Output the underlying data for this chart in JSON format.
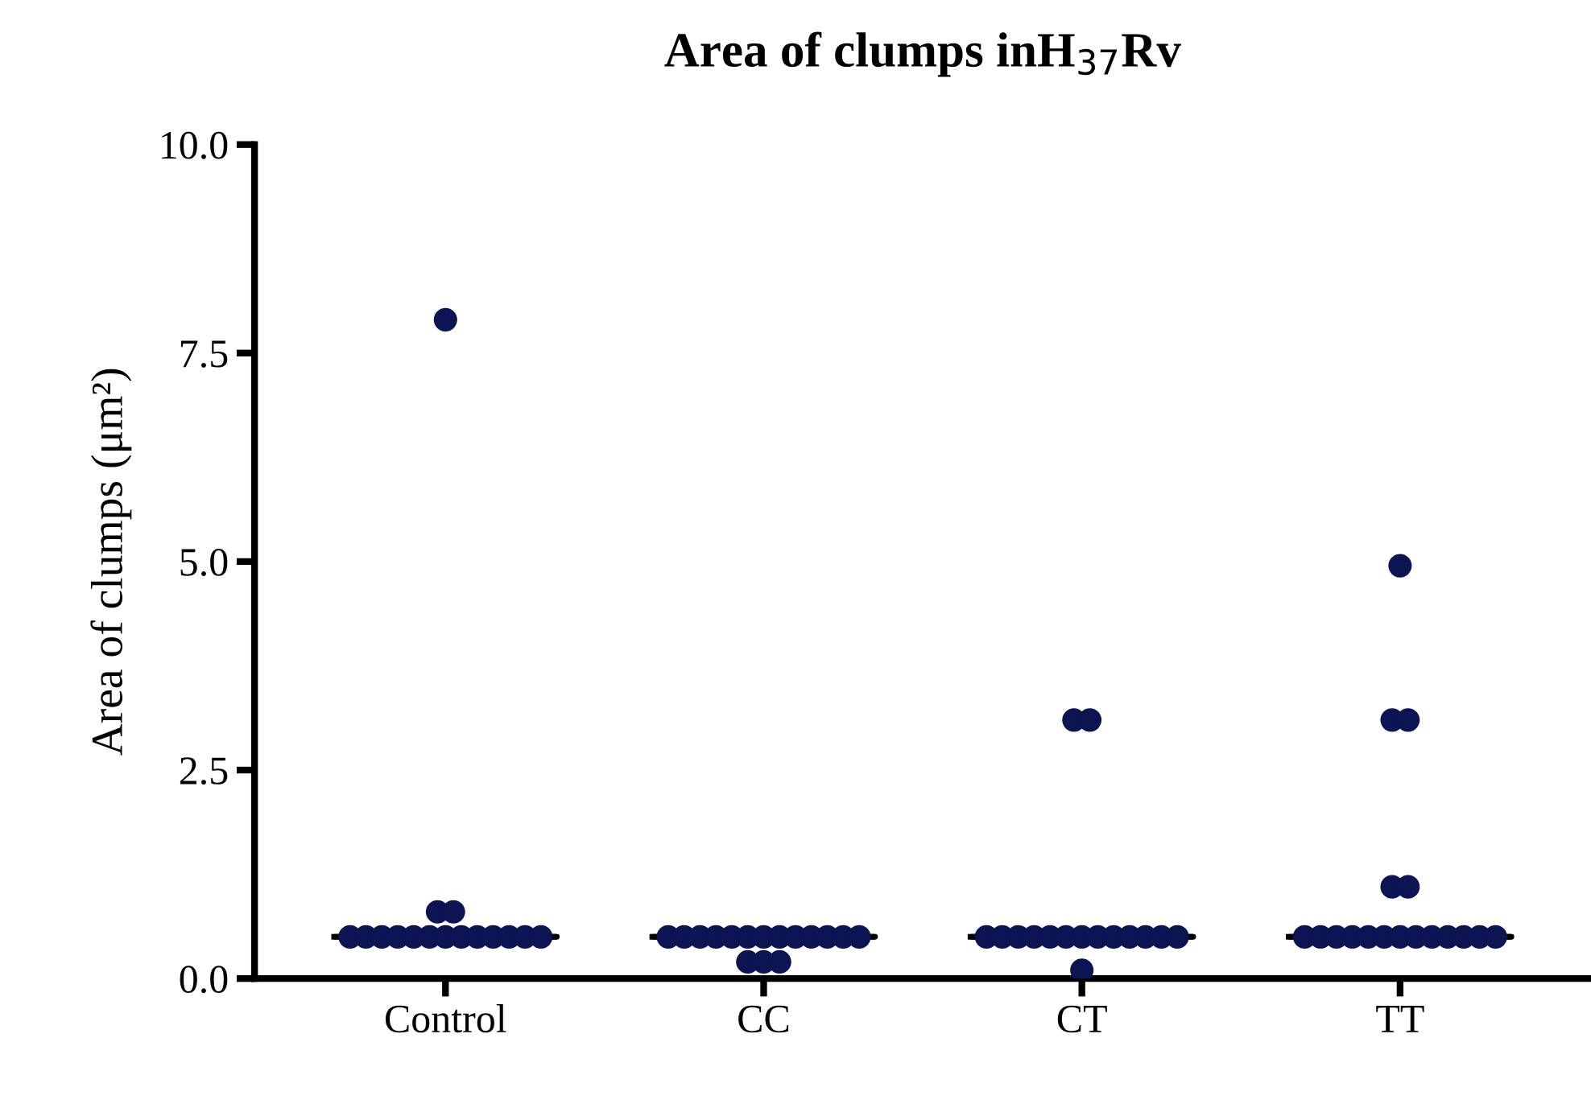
{
  "chart_data": {
    "type": "scatter",
    "title": "Area of clumps inH$_{37}$Rv",
    "ylabel": "Area of clumps (μm²)",
    "categories": [
      "Control",
      "CC",
      "CT",
      "TT"
    ],
    "ylim": [
      0,
      10
    ],
    "yticks": [
      {
        "value": 0,
        "label": "0.0"
      },
      {
        "value": 2.5,
        "label": "2.5"
      },
      {
        "value": 5,
        "label": "5.0"
      },
      {
        "value": 7.5,
        "label": "7.5"
      },
      {
        "value": 10,
        "label": "10.0"
      }
    ],
    "grid": false,
    "marker": "circle",
    "series": [
      {
        "color": "#0d1452",
        "x": [
          "Control",
          "Control",
          "Control",
          "Control",
          "Control",
          "Control",
          "Control",
          "Control",
          "Control",
          "Control",
          "Control",
          "Control",
          "Control",
          "Control",
          "Control",
          "Control",
          "CC",
          "CC",
          "CC",
          "CC",
          "CC",
          "CC",
          "CC",
          "CC",
          "CC",
          "CC",
          "CC",
          "CC",
          "CC",
          "CC",
          "CC",
          "CC",
          "CT",
          "CT",
          "CT",
          "CT",
          "CT",
          "CT",
          "CT",
          "CT",
          "CT",
          "CT",
          "CT",
          "CT",
          "CT",
          "CT",
          "CT",
          "CT",
          "TT",
          "TT",
          "TT",
          "TT",
          "TT",
          "TT",
          "TT",
          "TT",
          "TT",
          "TT",
          "TT",
          "TT",
          "TT",
          "TT",
          "TT",
          "TT",
          "TT",
          "TT"
        ],
        "values": [
          7.9,
          0.8,
          0.8,
          0.5,
          0.5,
          0.5,
          0.5,
          0.5,
          0.5,
          0.5,
          0.5,
          0.5,
          0.5,
          0.5,
          0.5,
          0.5,
          0.5,
          0.5,
          0.5,
          0.5,
          0.5,
          0.5,
          0.5,
          0.5,
          0.5,
          0.5,
          0.5,
          0.5,
          0.5,
          0.2,
          0.2,
          0.2,
          3.1,
          3.1,
          0.5,
          0.5,
          0.5,
          0.5,
          0.5,
          0.5,
          0.5,
          0.5,
          0.5,
          0.5,
          0.5,
          0.5,
          0.5,
          0.1,
          4.95,
          3.1,
          3.1,
          1.1,
          1.1,
          0.5,
          0.5,
          0.5,
          0.5,
          0.5,
          0.5,
          0.5,
          0.5,
          0.5,
          0.5,
          0.5,
          0.5,
          0.5
        ]
      },
      {
        "type": "box",
        "color": "#000000",
        "boxes": [
          {
            "low": 0.5,
            "q1": 0.5,
            "median": 0.5,
            "q3": 0.5,
            "high": 0.5
          },
          {
            "low": 0.5,
            "q1": 0.5,
            "median": 0.5,
            "q3": 0.5,
            "high": 0.5
          },
          {
            "low": 0.5,
            "q1": 0.5,
            "median": 0.5,
            "q3": 0.5,
            "high": 0.5
          },
          {
            "low": 0.5,
            "q1": 0.5,
            "median": 0.5,
            "q3": 0.5,
            "high": 0.5
          }
        ]
      }
    ]
  }
}
